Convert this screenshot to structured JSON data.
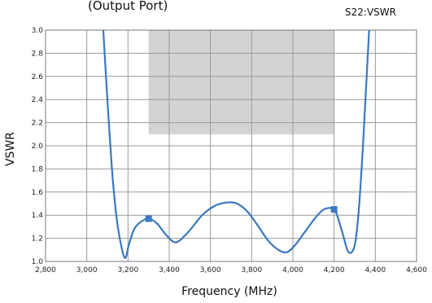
{
  "header_fragment": "(Output Port)",
  "chart_data": {
    "type": "line",
    "series_label": "S22:VSWR",
    "xlabel": "Frequency (MHz)",
    "ylabel": "VSWR",
    "xlim": [
      2800,
      4600
    ],
    "ylim": [
      1.0,
      3.0
    ],
    "x_ticks": [
      2800,
      3000,
      3200,
      3400,
      3600,
      3800,
      4000,
      4200,
      4400,
      4600
    ],
    "x_tick_labels": [
      "2,800",
      "3,000",
      "3,200",
      "3,400",
      "3,600",
      "3,800",
      "4,000",
      "4,200",
      "4,400",
      "4,600"
    ],
    "y_ticks": [
      1.0,
      1.2,
      1.4,
      1.6,
      1.8,
      2.0,
      2.2,
      2.4,
      2.6,
      2.8,
      3.0
    ],
    "y_tick_labels": [
      "1.0",
      "1.2",
      "1.4",
      "1.6",
      "1.8",
      "2.0",
      "2.2",
      "2.4",
      "2.6",
      "2.8",
      "3.0"
    ],
    "grid": true,
    "shaded_region": {
      "x": [
        3300,
        4200
      ],
      "y": [
        2.1,
        3.0
      ],
      "color": "#d3d3d3"
    },
    "line_color": "#3a78bf",
    "series": [
      {
        "values": [
          {
            "x": 3080,
            "y": 3.0
          },
          {
            "x": 3100,
            "y": 2.4
          },
          {
            "x": 3120,
            "y": 1.85
          },
          {
            "x": 3140,
            "y": 1.45
          },
          {
            "x": 3160,
            "y": 1.2
          },
          {
            "x": 3185,
            "y": 1.03
          },
          {
            "x": 3205,
            "y": 1.15
          },
          {
            "x": 3230,
            "y": 1.28
          },
          {
            "x": 3260,
            "y": 1.34
          },
          {
            "x": 3300,
            "y": 1.37
          },
          {
            "x": 3340,
            "y": 1.33
          },
          {
            "x": 3380,
            "y": 1.24
          },
          {
            "x": 3420,
            "y": 1.17
          },
          {
            "x": 3450,
            "y": 1.18
          },
          {
            "x": 3500,
            "y": 1.27
          },
          {
            "x": 3560,
            "y": 1.4
          },
          {
            "x": 3620,
            "y": 1.48
          },
          {
            "x": 3680,
            "y": 1.51
          },
          {
            "x": 3730,
            "y": 1.5
          },
          {
            "x": 3780,
            "y": 1.43
          },
          {
            "x": 3830,
            "y": 1.31
          },
          {
            "x": 3880,
            "y": 1.18
          },
          {
            "x": 3930,
            "y": 1.1
          },
          {
            "x": 3970,
            "y": 1.08
          },
          {
            "x": 4010,
            "y": 1.14
          },
          {
            "x": 4060,
            "y": 1.26
          },
          {
            "x": 4110,
            "y": 1.38
          },
          {
            "x": 4150,
            "y": 1.45
          },
          {
            "x": 4190,
            "y": 1.46
          },
          {
            "x": 4210,
            "y": 1.42
          },
          {
            "x": 4240,
            "y": 1.25
          },
          {
            "x": 4270,
            "y": 1.08
          },
          {
            "x": 4300,
            "y": 1.14
          },
          {
            "x": 4320,
            "y": 1.45
          },
          {
            "x": 4340,
            "y": 2.0
          },
          {
            "x": 4355,
            "y": 2.5
          },
          {
            "x": 4370,
            "y": 3.0
          }
        ]
      }
    ],
    "markers": [
      {
        "x": 3300,
        "y": 1.37
      },
      {
        "x": 4200,
        "y": 1.45
      }
    ]
  }
}
